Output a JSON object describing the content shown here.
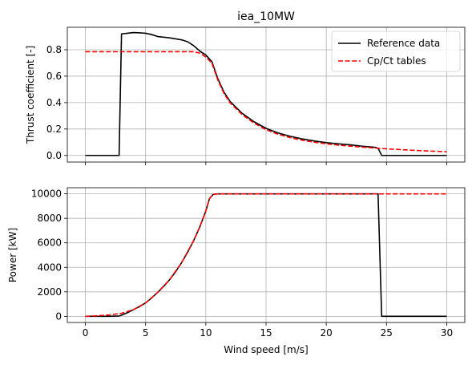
{
  "chart_data": [
    {
      "type": "line",
      "title": "iea_10MW",
      "xlabel": "",
      "ylabel": "Thrust coefficient [-]",
      "xlim": [
        -1.5,
        31.5
      ],
      "ylim": [
        -0.05,
        0.97
      ],
      "xticks": [
        0,
        5,
        10,
        15,
        20,
        25,
        30
      ],
      "yticks": [
        0.0,
        0.2,
        0.4,
        0.6,
        0.8
      ],
      "ytick_labels": [
        "0.0",
        "0.2",
        "0.4",
        "0.6",
        "0.8"
      ],
      "show_xtick_labels": false,
      "grid": true,
      "legend": "upper right",
      "series": [
        {
          "name": "Reference data",
          "color": "#000000",
          "style": "solid",
          "x": [
            0,
            1,
            2,
            2.8,
            3,
            3.5,
            4,
            4.5,
            5,
            5.5,
            6,
            7,
            8,
            8.5,
            9,
            9.5,
            10,
            10.5,
            11,
            11.5,
            12,
            13,
            14,
            15,
            16,
            17,
            18,
            19,
            20,
            21,
            22,
            23,
            24,
            24.3,
            24.6,
            25,
            26,
            27,
            28,
            29,
            30
          ],
          "y": [
            0,
            0,
            0,
            0,
            0.92,
            0.925,
            0.93,
            0.928,
            0.925,
            0.915,
            0.9,
            0.89,
            0.875,
            0.86,
            0.83,
            0.79,
            0.76,
            0.71,
            0.58,
            0.48,
            0.41,
            0.32,
            0.255,
            0.205,
            0.17,
            0.145,
            0.125,
            0.11,
            0.097,
            0.088,
            0.08,
            0.07,
            0.062,
            0.055,
            0.0,
            0,
            0,
            0,
            0,
            0,
            0
          ]
        },
        {
          "name": "Cp/Ct tables",
          "color": "#ff0000",
          "style": "dashed",
          "x": [
            0,
            1,
            2,
            3,
            4,
            5,
            6,
            7,
            8,
            9,
            9.5,
            10,
            10.5,
            11,
            11.5,
            12,
            13,
            14,
            15,
            16,
            17,
            18,
            19,
            20,
            21,
            22,
            23,
            24,
            25,
            26,
            27,
            28,
            29,
            30
          ],
          "y": [
            0.785,
            0.785,
            0.785,
            0.785,
            0.785,
            0.785,
            0.785,
            0.785,
            0.785,
            0.785,
            0.775,
            0.745,
            0.7,
            0.57,
            0.47,
            0.4,
            0.31,
            0.245,
            0.195,
            0.16,
            0.135,
            0.115,
            0.1,
            0.088,
            0.078,
            0.07,
            0.063,
            0.056,
            0.05,
            0.045,
            0.04,
            0.036,
            0.032,
            0.028
          ]
        }
      ]
    },
    {
      "type": "line",
      "title": "",
      "xlabel": "Wind speed [m/s]",
      "ylabel": "Power [kW]",
      "xlim": [
        -1.5,
        31.5
      ],
      "ylim": [
        -500,
        10500
      ],
      "xticks": [
        0,
        5,
        10,
        15,
        20,
        25,
        30
      ],
      "xtick_labels": [
        "0",
        "5",
        "10",
        "15",
        "20",
        "25",
        "30"
      ],
      "yticks": [
        0,
        2000,
        4000,
        6000,
        8000,
        10000
      ],
      "ytick_labels": [
        "0",
        "2000",
        "4000",
        "6000",
        "8000",
        "10000"
      ],
      "grid": true,
      "series": [
        {
          "name": "Reference data",
          "color": "#000000",
          "style": "solid",
          "x": [
            0,
            1,
            2,
            2.8,
            3,
            3.5,
            4,
            4.5,
            5,
            5.5,
            6,
            6.5,
            7,
            7.5,
            8,
            8.5,
            9,
            9.5,
            10,
            10.3,
            10.6,
            11,
            12,
            13,
            14,
            15,
            16,
            17,
            18,
            19,
            20,
            21,
            22,
            23,
            24,
            24.3,
            24.6,
            25,
            26,
            27,
            28,
            29,
            30
          ],
          "y": [
            0,
            0,
            0,
            30,
            100,
            300,
            550,
            800,
            1100,
            1500,
            1950,
            2450,
            3000,
            3650,
            4400,
            5250,
            6200,
            7300,
            8600,
            9600,
            9950,
            10000,
            10000,
            10000,
            10000,
            10000,
            10000,
            10000,
            10000,
            10000,
            10000,
            10000,
            10000,
            10000,
            10000,
            10000,
            0,
            0,
            0,
            0,
            0,
            0,
            0
          ]
        },
        {
          "name": "Cp/Ct tables",
          "color": "#ff0000",
          "style": "dashed",
          "x": [
            0,
            1,
            2,
            3,
            4,
            5,
            6,
            7,
            8,
            9,
            9.5,
            10,
            10.3,
            10.6,
            11,
            12,
            13,
            14,
            15,
            16,
            17,
            18,
            19,
            20,
            21,
            22,
            23,
            24,
            25,
            26,
            27,
            28,
            29,
            30
          ],
          "y": [
            0,
            50,
            120,
            250,
            550,
            1100,
            1950,
            3000,
            4400,
            6200,
            7300,
            8600,
            9600,
            9950,
            10000,
            10000,
            10000,
            10000,
            10000,
            10000,
            10000,
            10000,
            10000,
            10000,
            10000,
            10000,
            10000,
            10000,
            10000,
            10000,
            10000,
            10000,
            10000,
            10000
          ]
        }
      ]
    }
  ]
}
